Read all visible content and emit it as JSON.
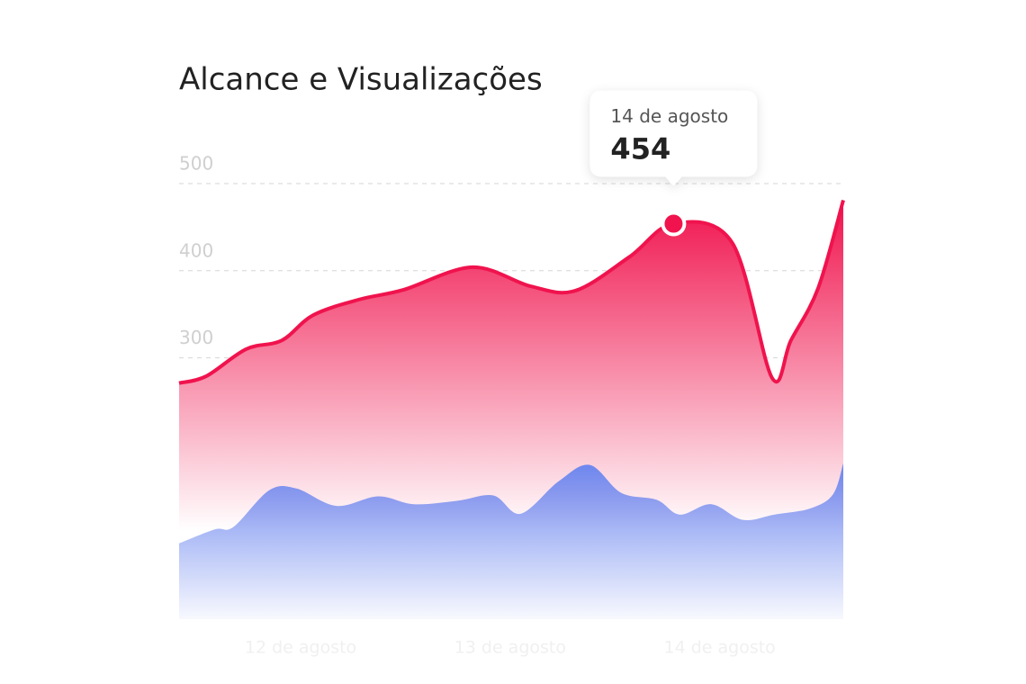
{
  "chart_data": {
    "type": "area",
    "title": "Alcance e Visualizações",
    "xlim": [
      11.42,
      14.59
    ],
    "xticks": [
      {
        "value": 12,
        "label": "12 de agosto"
      },
      {
        "value": 13,
        "label": "13 de agosto"
      },
      {
        "value": 14,
        "label": "14 de agosto"
      }
    ],
    "ylim": [
      0,
      500
    ],
    "yticks": [
      300,
      400,
      500
    ],
    "grid": true,
    "series": [
      {
        "color": "#f0134d",
        "x": [
          11.42,
          11.55,
          11.74,
          11.91,
          12.06,
          12.28,
          12.49,
          12.82,
          13.1,
          13.31,
          13.57,
          13.78,
          14.06,
          14.25,
          14.34,
          14.47,
          14.59
        ],
        "values": [
          271,
          279,
          310,
          320,
          349,
          367,
          378,
          404,
          382,
          377,
          416,
          454,
          432,
          277,
          320,
          380,
          481
        ]
      },
      {
        "color": "#6d87ef",
        "x": [
          11.42,
          11.59,
          11.68,
          11.85,
          11.98,
          12.17,
          12.37,
          12.54,
          12.75,
          12.92,
          13.05,
          13.23,
          13.38,
          13.53,
          13.7,
          13.81,
          13.96,
          14.11,
          14.26,
          14.43,
          14.54,
          14.59
        ],
        "values": [
          87,
          103,
          106,
          148,
          150,
          130,
          141,
          132,
          136,
          142,
          121,
          158,
          177,
          145,
          137,
          120,
          132,
          114,
          120,
          127,
          143,
          179
        ]
      }
    ],
    "tooltip": {
      "title": "14 de agosto",
      "series": 0,
      "index": 11
    }
  }
}
